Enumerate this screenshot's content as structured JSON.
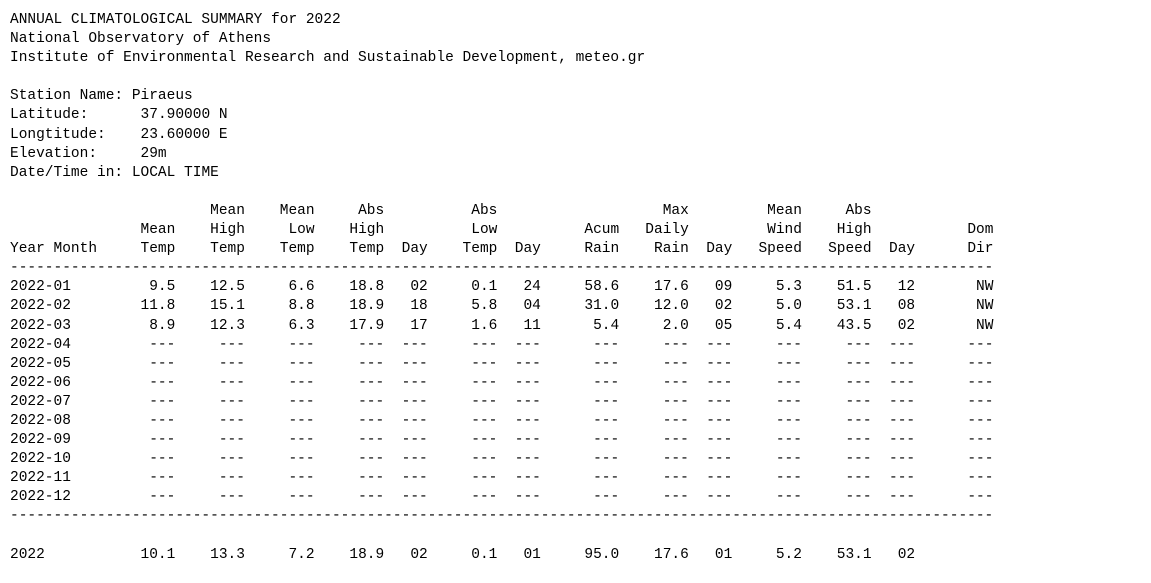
{
  "header": {
    "title": "ANNUAL CLIMATOLOGICAL SUMMARY for 2022",
    "observatory": "National Observatory of Athens",
    "institute": "Institute of Environmental Research and Sustainable Development, meteo.gr"
  },
  "station": {
    "name_label": "Station Name:",
    "name": "Piraeus",
    "lat_label": "Latitude:",
    "latitude": "37.90000 N",
    "lon_label": "Longtitude:",
    "longitude": "23.60000 E",
    "elev_label": "Elevation:",
    "elevation": "29m",
    "time_label": "Date/Time in:",
    "time": "LOCAL TIME"
  },
  "columns": [
    {
      "key": "ym",
      "width": 13,
      "align": "left",
      "head": [
        "",
        "",
        "Year Month"
      ]
    },
    {
      "key": "mean_temp",
      "width": 6,
      "align": "right",
      "head": [
        "",
        "Mean",
        "Temp"
      ]
    },
    {
      "key": "mean_high",
      "width": 8,
      "align": "right",
      "head": [
        "Mean",
        "High",
        "Temp"
      ]
    },
    {
      "key": "mean_low",
      "width": 8,
      "align": "right",
      "head": [
        "Mean",
        "Low",
        "Temp"
      ]
    },
    {
      "key": "abs_high",
      "width": 8,
      "align": "right",
      "head": [
        "Abs",
        "High",
        "Temp"
      ]
    },
    {
      "key": "abs_high_day",
      "width": 5,
      "align": "right",
      "head": [
        "",
        "",
        "Day"
      ]
    },
    {
      "key": "abs_low",
      "width": 8,
      "align": "right",
      "head": [
        "Abs",
        "Low",
        "Temp"
      ]
    },
    {
      "key": "abs_low_day",
      "width": 5,
      "align": "right",
      "head": [
        "",
        "",
        "Day"
      ]
    },
    {
      "key": "rain",
      "width": 9,
      "align": "right",
      "head": [
        "",
        "Acum",
        "Rain"
      ]
    },
    {
      "key": "max_rain",
      "width": 8,
      "align": "right",
      "head": [
        "Max",
        "Daily",
        "Rain"
      ]
    },
    {
      "key": "max_rain_day",
      "width": 5,
      "align": "right",
      "head": [
        "",
        "",
        "Day"
      ]
    },
    {
      "key": "wind",
      "width": 8,
      "align": "right",
      "head": [
        "Mean",
        "Wind",
        "Speed"
      ]
    },
    {
      "key": "high_speed",
      "width": 8,
      "align": "right",
      "head": [
        "Abs",
        "High",
        "Speed"
      ]
    },
    {
      "key": "speed_day",
      "width": 5,
      "align": "right",
      "head": [
        "",
        "",
        "Day"
      ]
    },
    {
      "key": "dir",
      "width": 9,
      "align": "right",
      "head": [
        "",
        "Dom",
        "Dir"
      ]
    }
  ],
  "rows": [
    [
      "2022-01",
      "9.5",
      "12.5",
      "6.6",
      "18.8",
      "02",
      "0.1",
      "24",
      "58.6",
      "17.6",
      "09",
      "5.3",
      "51.5",
      "12",
      "NW"
    ],
    [
      "2022-02",
      "11.8",
      "15.1",
      "8.8",
      "18.9",
      "18",
      "5.8",
      "04",
      "31.0",
      "12.0",
      "02",
      "5.0",
      "53.1",
      "08",
      "NW"
    ],
    [
      "2022-03",
      "8.9",
      "12.3",
      "6.3",
      "17.9",
      "17",
      "1.6",
      "11",
      "5.4",
      "2.0",
      "05",
      "5.4",
      "43.5",
      "02",
      "NW"
    ],
    [
      "2022-04",
      "---",
      "---",
      "---",
      "---",
      "---",
      "---",
      "---",
      "---",
      "---",
      "---",
      "---",
      "---",
      "---",
      "---"
    ],
    [
      "2022-05",
      "---",
      "---",
      "---",
      "---",
      "---",
      "---",
      "---",
      "---",
      "---",
      "---",
      "---",
      "---",
      "---",
      "---"
    ],
    [
      "2022-06",
      "---",
      "---",
      "---",
      "---",
      "---",
      "---",
      "---",
      "---",
      "---",
      "---",
      "---",
      "---",
      "---",
      "---"
    ],
    [
      "2022-07",
      "---",
      "---",
      "---",
      "---",
      "---",
      "---",
      "---",
      "---",
      "---",
      "---",
      "---",
      "---",
      "---",
      "---"
    ],
    [
      "2022-08",
      "---",
      "---",
      "---",
      "---",
      "---",
      "---",
      "---",
      "---",
      "---",
      "---",
      "---",
      "---",
      "---",
      "---"
    ],
    [
      "2022-09",
      "---",
      "---",
      "---",
      "---",
      "---",
      "---",
      "---",
      "---",
      "---",
      "---",
      "---",
      "---",
      "---",
      "---"
    ],
    [
      "2022-10",
      "---",
      "---",
      "---",
      "---",
      "---",
      "---",
      "---",
      "---",
      "---",
      "---",
      "---",
      "---",
      "---",
      "---"
    ],
    [
      "2022-11",
      "---",
      "---",
      "---",
      "---",
      "---",
      "---",
      "---",
      "---",
      "---",
      "---",
      "---",
      "---",
      "---",
      "---"
    ],
    [
      "2022-12",
      "---",
      "---",
      "---",
      "---",
      "---",
      "---",
      "---",
      "---",
      "---",
      "---",
      "---",
      "---",
      "---",
      "---"
    ]
  ],
  "summary": [
    "2022",
    "10.1",
    "13.3",
    "7.2",
    "18.9",
    "02",
    "0.1",
    "01",
    "95.0",
    "17.6",
    "01",
    "5.2",
    "53.1",
    "02",
    ""
  ]
}
